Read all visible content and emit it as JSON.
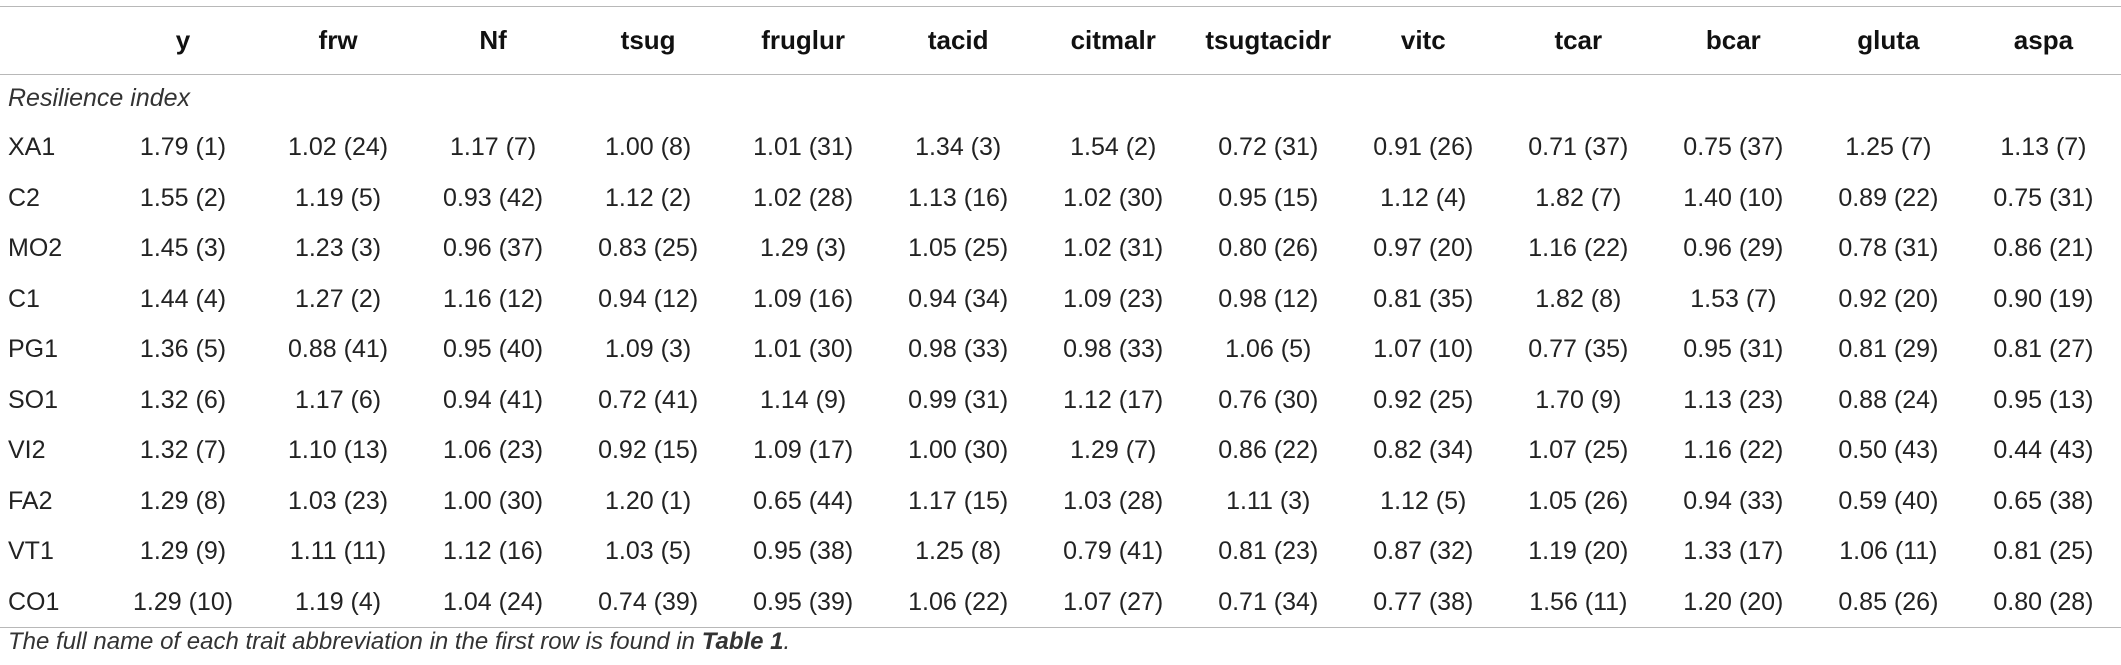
{
  "header": {
    "label_col": "",
    "columns": [
      "y",
      "frw",
      "Nf",
      "tsug",
      "fruglur",
      "tacid",
      "citmalr",
      "tsugtacidr",
      "vitc",
      "tcar",
      "bcar",
      "gluta",
      "aspa"
    ]
  },
  "section_title": "Resilience index",
  "rows": [
    {
      "name": "XA1",
      "values": [
        "1.79 (1)",
        "1.02 (24)",
        "1.17 (7)",
        "1.00 (8)",
        "1.01 (31)",
        "1.34 (3)",
        "1.54 (2)",
        "0.72 (31)",
        "0.91 (26)",
        "0.71 (37)",
        "0.75 (37)",
        "1.25 (7)",
        "1.13 (7)"
      ]
    },
    {
      "name": "C2",
      "values": [
        "1.55 (2)",
        "1.19 (5)",
        "0.93 (42)",
        "1.12 (2)",
        "1.02 (28)",
        "1.13 (16)",
        "1.02 (30)",
        "0.95 (15)",
        "1.12 (4)",
        "1.82 (7)",
        "1.40 (10)",
        "0.89 (22)",
        "0.75 (31)"
      ]
    },
    {
      "name": "MO2",
      "values": [
        "1.45 (3)",
        "1.23 (3)",
        "0.96 (37)",
        "0.83 (25)",
        "1.29 (3)",
        "1.05 (25)",
        "1.02 (31)",
        "0.80 (26)",
        "0.97 (20)",
        "1.16 (22)",
        "0.96 (29)",
        "0.78 (31)",
        "0.86 (21)"
      ]
    },
    {
      "name": "C1",
      "values": [
        "1.44 (4)",
        "1.27 (2)",
        "1.16 (12)",
        "0.94 (12)",
        "1.09 (16)",
        "0.94 (34)",
        "1.09 (23)",
        "0.98 (12)",
        "0.81 (35)",
        "1.82 (8)",
        "1.53 (7)",
        "0.92 (20)",
        "0.90 (19)"
      ]
    },
    {
      "name": "PG1",
      "values": [
        "1.36 (5)",
        "0.88 (41)",
        "0.95 (40)",
        "1.09 (3)",
        "1.01 (30)",
        "0.98 (33)",
        "0.98 (33)",
        "1.06 (5)",
        "1.07 (10)",
        "0.77 (35)",
        "0.95 (31)",
        "0.81 (29)",
        "0.81 (27)"
      ]
    },
    {
      "name": "SO1",
      "values": [
        "1.32 (6)",
        "1.17 (6)",
        "0.94 (41)",
        "0.72 (41)",
        "1.14 (9)",
        "0.99 (31)",
        "1.12 (17)",
        "0.76 (30)",
        "0.92 (25)",
        "1.70 (9)",
        "1.13 (23)",
        "0.88 (24)",
        "0.95 (13)"
      ]
    },
    {
      "name": "VI2",
      "values": [
        "1.32 (7)",
        "1.10 (13)",
        "1.06 (23)",
        "0.92 (15)",
        "1.09 (17)",
        "1.00 (30)",
        "1.29 (7)",
        "0.86 (22)",
        "0.82 (34)",
        "1.07 (25)",
        "1.16 (22)",
        "0.50 (43)",
        "0.44 (43)"
      ]
    },
    {
      "name": "FA2",
      "values": [
        "1.29 (8)",
        "1.03 (23)",
        "1.00 (30)",
        "1.20 (1)",
        "0.65 (44)",
        "1.17 (15)",
        "1.03 (28)",
        "1.11 (3)",
        "1.12 (5)",
        "1.05 (26)",
        "0.94 (33)",
        "0.59 (40)",
        "0.65 (38)"
      ]
    },
    {
      "name": "VT1",
      "values": [
        "1.29 (9)",
        "1.11 (11)",
        "1.12 (16)",
        "1.03 (5)",
        "0.95 (38)",
        "1.25 (8)",
        "0.79 (41)",
        "0.81 (23)",
        "0.87 (32)",
        "1.19 (20)",
        "1.33 (17)",
        "1.06 (11)",
        "0.81 (25)"
      ]
    },
    {
      "name": "CO1",
      "values": [
        "1.29 (10)",
        "1.19 (4)",
        "1.04 (24)",
        "0.74 (39)",
        "0.95 (39)",
        "1.06 (22)",
        "1.07 (27)",
        "0.71 (34)",
        "0.77 (38)",
        "1.56 (11)",
        "1.20 (20)",
        "0.85 (26)",
        "0.80 (28)"
      ]
    }
  ],
  "footnote": {
    "prefix": "The full name of each trait abbreviation in the first row is found in ",
    "ref": "Table 1",
    "suffix": "."
  }
}
